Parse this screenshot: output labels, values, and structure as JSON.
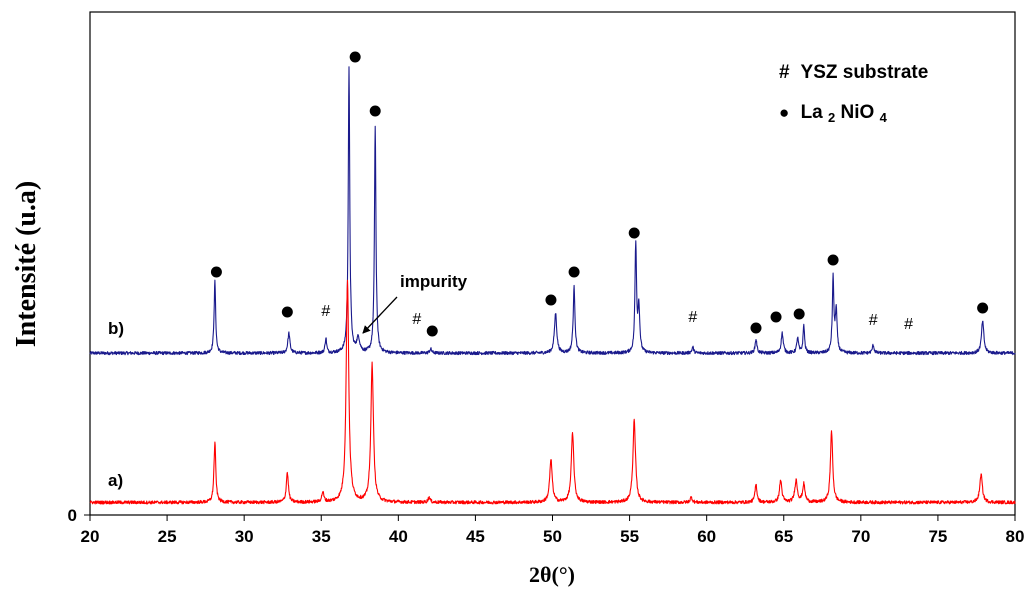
{
  "chart_data": {
    "type": "line",
    "xlabel": "2θ(°)",
    "ylabel": "Intensité (u.a)",
    "xlim": [
      20,
      80
    ],
    "xticks": [
      20,
      25,
      30,
      35,
      40,
      45,
      50,
      55,
      60,
      65,
      70,
      75,
      80
    ],
    "yticks": [
      0
    ],
    "grid": false,
    "legend": {
      "placement": "top-right",
      "items": [
        {
          "symbol": "#",
          "text": "YSZ substrate"
        },
        {
          "symbol": "●",
          "text_main": "La",
          "sub1": "2",
          "text_mid": "NiO",
          "sub2": "4"
        }
      ]
    },
    "series": [
      {
        "label": "b)",
        "color": "#1a1a8c",
        "baseline": 355,
        "peaks": [
          {
            "x": 28.1,
            "h": 72,
            "w": 0.06
          },
          {
            "x": 32.9,
            "h": 20,
            "w": 0.08
          },
          {
            "x": 35.3,
            "h": 15,
            "w": 0.06
          },
          {
            "x": 36.8,
            "h": 284,
            "w": 0.06
          },
          {
            "x": 37.4,
            "h": 14,
            "w": 0.12
          },
          {
            "x": 38.5,
            "h": 226,
            "w": 0.06
          },
          {
            "x": 42.1,
            "h": 4,
            "w": 0.08
          },
          {
            "x": 50.2,
            "h": 40,
            "w": 0.09
          },
          {
            "x": 51.4,
            "h": 66,
            "w": 0.07
          },
          {
            "x": 55.4,
            "h": 108,
            "w": 0.06
          },
          {
            "x": 55.6,
            "h": 45,
            "w": 0.07
          },
          {
            "x": 59.1,
            "h": 6,
            "w": 0.07
          },
          {
            "x": 63.2,
            "h": 14,
            "w": 0.07
          },
          {
            "x": 64.9,
            "h": 20,
            "w": 0.08
          },
          {
            "x": 65.9,
            "h": 15,
            "w": 0.07
          },
          {
            "x": 66.3,
            "h": 28,
            "w": 0.06
          },
          {
            "x": 68.2,
            "h": 74,
            "w": 0.06
          },
          {
            "x": 68.4,
            "h": 42,
            "w": 0.07
          },
          {
            "x": 70.8,
            "h": 8,
            "w": 0.07
          },
          {
            "x": 77.9,
            "h": 32,
            "w": 0.09
          }
        ]
      },
      {
        "label": "a)",
        "color": "#ff0000",
        "baseline": 505,
        "peaks": [
          {
            "x": 28.1,
            "h": 60,
            "w": 0.07
          },
          {
            "x": 32.8,
            "h": 30,
            "w": 0.08
          },
          {
            "x": 35.1,
            "h": 10,
            "w": 0.08
          },
          {
            "x": 36.7,
            "h": 222,
            "w": 0.1
          },
          {
            "x": 38.3,
            "h": 138,
            "w": 0.1
          },
          {
            "x": 42.0,
            "h": 5,
            "w": 0.08
          },
          {
            "x": 49.9,
            "h": 42,
            "w": 0.1
          },
          {
            "x": 51.3,
            "h": 68,
            "w": 0.1
          },
          {
            "x": 55.3,
            "h": 82,
            "w": 0.1
          },
          {
            "x": 59.0,
            "h": 5,
            "w": 0.08
          },
          {
            "x": 63.2,
            "h": 18,
            "w": 0.08
          },
          {
            "x": 64.8,
            "h": 22,
            "w": 0.09
          },
          {
            "x": 65.8,
            "h": 22,
            "w": 0.1
          },
          {
            "x": 66.3,
            "h": 18,
            "w": 0.09
          },
          {
            "x": 68.1,
            "h": 70,
            "w": 0.09
          },
          {
            "x": 77.8,
            "h": 28,
            "w": 0.1
          }
        ]
      }
    ],
    "annotations": {
      "dots": [
        {
          "x": 28.2,
          "y": 272
        },
        {
          "x": 32.8,
          "y": 312
        },
        {
          "x": 37.2,
          "y": 57
        },
        {
          "x": 38.5,
          "y": 111
        },
        {
          "x": 42.2,
          "y": 331
        },
        {
          "x": 49.9,
          "y": 300
        },
        {
          "x": 51.4,
          "y": 272
        },
        {
          "x": 55.3,
          "y": 233
        },
        {
          "x": 63.2,
          "y": 328
        },
        {
          "x": 64.5,
          "y": 317
        },
        {
          "x": 66.0,
          "y": 314
        },
        {
          "x": 68.2,
          "y": 260
        },
        {
          "x": 77.9,
          "y": 308
        }
      ],
      "hashes": [
        {
          "x": 35.3,
          "y": 316
        },
        {
          "x": 41.2,
          "y": 324
        },
        {
          "x": 59.1,
          "y": 322
        },
        {
          "x": 70.8,
          "y": 325
        },
        {
          "x": 73.1,
          "y": 329
        }
      ],
      "impurity": {
        "text": "impurity",
        "text_pos": [
          400,
          287
        ],
        "arrow_from": [
          397,
          297
        ],
        "arrow_to": [
          363,
          333
        ]
      }
    }
  }
}
